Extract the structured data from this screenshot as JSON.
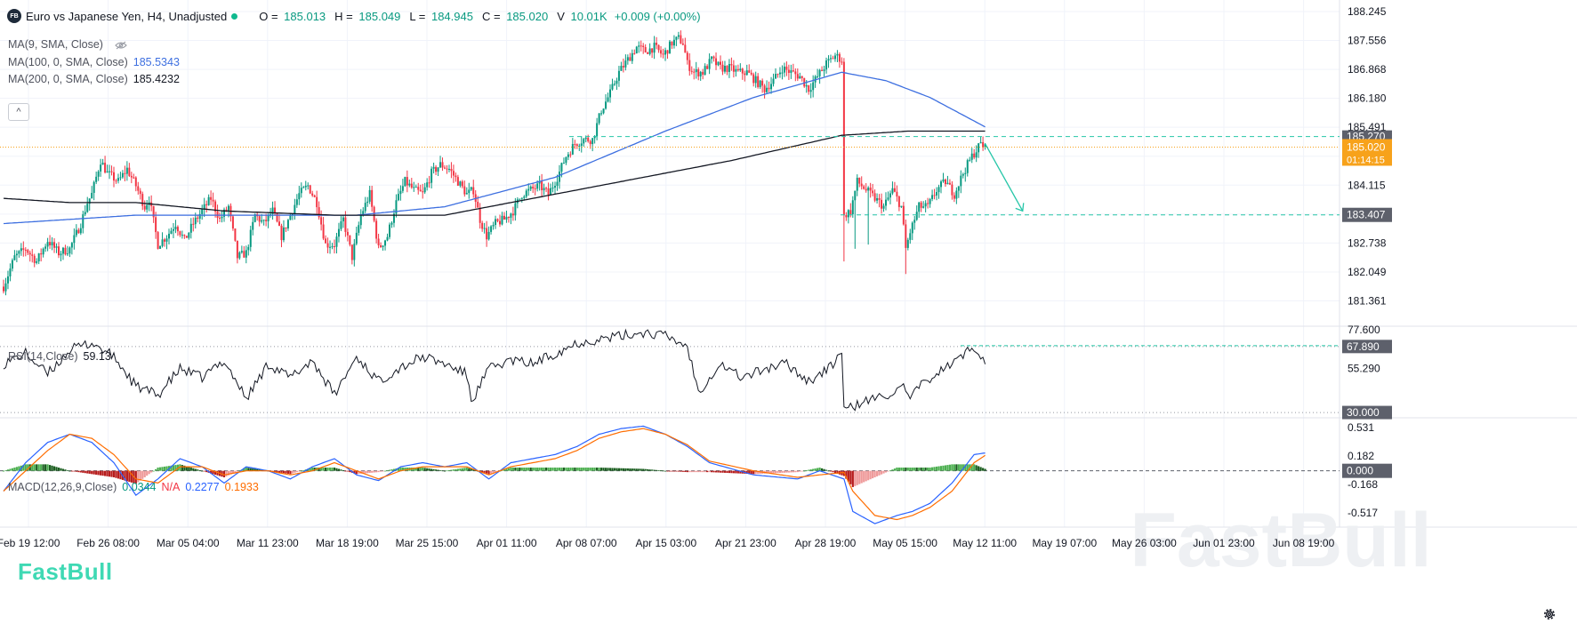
{
  "header": {
    "badge": "FB",
    "title": "Euro vs Japanese Yen, H4, Unadjusted",
    "ohlc": [
      {
        "key": "O",
        "value": "185.013"
      },
      {
        "key": "H",
        "value": "185.049"
      },
      {
        "key": "L",
        "value": "184.945"
      },
      {
        "key": "C",
        "value": "185.020"
      },
      {
        "key": "V",
        "value": "10.01K"
      }
    ],
    "change": "+0.009 (+0.00%)"
  },
  "indicators": {
    "ma9": {
      "label": "MA(9, SMA, Close)",
      "value": ""
    },
    "ma100": {
      "label": "MA(100, 0, SMA, Close)",
      "value": "185.5343",
      "color": "#3d6fe0"
    },
    "ma200": {
      "label": "MA(200, 0, SMA, Close)",
      "value": "185.4232",
      "color": "#131722"
    },
    "collapse": "^"
  },
  "rsi_legend": {
    "label": "RSI(14,Close)",
    "value": "59.13"
  },
  "macd_legend": {
    "label": "MACD(12,26,9,Close)",
    "hist": "0.0344",
    "na": "N/A",
    "macd": "0.2277",
    "signal": "0.1933"
  },
  "colors": {
    "up": "#089981",
    "down": "#f23645",
    "ma100": "#3d6fe0",
    "ma200": "#131722",
    "macd": "#2962ff",
    "signal": "#ff6d00",
    "level": "#26c6a8",
    "price_tag": "#f7a21b"
  },
  "watermark": {
    "small": "FastBull",
    "large": "FastBull"
  },
  "chart_data": [
    {
      "type": "candlestick",
      "title": "Euro vs Japanese Yen, H4, Unadjusted",
      "x_tick_labels": [
        "Feb 19 12:00",
        "Feb 26 08:00",
        "Mar 05 04:00",
        "Mar 11 23:00",
        "Mar 18 19:00",
        "Mar 25 15:00",
        "Apr 01 11:00",
        "Apr 08 07:00",
        "Apr 15 03:00",
        "Apr 21 23:00",
        "Apr 28 19:00",
        "May 05 15:00",
        "May 12 11:00",
        "May 19 07:00",
        "May 26 03:00",
        "Jun 01 23:00",
        "Jun 08 19:00"
      ],
      "y_tick_labels": [
        "188.245",
        "187.556",
        "186.868",
        "186.180",
        "185.491",
        "184.803",
        "184.115",
        "183.426",
        "182.738",
        "182.049",
        "181.361"
      ],
      "ylim": [
        180.8,
        188.35
      ],
      "anchors": [
        [
          0,
          181.7
        ],
        [
          5,
          182.4
        ],
        [
          10,
          182.6
        ],
        [
          15,
          182.3
        ],
        [
          20,
          182.8
        ],
        [
          25,
          182.5
        ],
        [
          30,
          182.6
        ],
        [
          35,
          183.2
        ],
        [
          38,
          183.7
        ],
        [
          40,
          183.9
        ],
        [
          44,
          184.7
        ],
        [
          47,
          184.4
        ],
        [
          52,
          184.2
        ],
        [
          56,
          184.5
        ],
        [
          60,
          184.1
        ],
        [
          64,
          183.6
        ],
        [
          66,
          183.8
        ],
        [
          70,
          182.7
        ],
        [
          74,
          182.9
        ],
        [
          78,
          183.2
        ],
        [
          82,
          182.8
        ],
        [
          86,
          183.2
        ],
        [
          90,
          183.5
        ],
        [
          94,
          183.8
        ],
        [
          98,
          183.3
        ],
        [
          102,
          183.6
        ],
        [
          106,
          182.4
        ],
        [
          110,
          182.5
        ],
        [
          114,
          183.4
        ],
        [
          118,
          183.2
        ],
        [
          122,
          183.5
        ],
        [
          126,
          182.9
        ],
        [
          130,
          183.4
        ],
        [
          134,
          183.9
        ],
        [
          138,
          184.1
        ],
        [
          142,
          183.7
        ],
        [
          146,
          182.7
        ],
        [
          150,
          182.7
        ],
        [
          154,
          183.3
        ],
        [
          158,
          182.4
        ],
        [
          162,
          183.4
        ],
        [
          166,
          183.9
        ],
        [
          170,
          182.6
        ],
        [
          174,
          182.9
        ],
        [
          178,
          183.7
        ],
        [
          182,
          184.2
        ],
        [
          186,
          184.0
        ],
        [
          190,
          183.9
        ],
        [
          194,
          184.4
        ],
        [
          198,
          184.6
        ],
        [
          202,
          184.5
        ],
        [
          206,
          184.2
        ],
        [
          210,
          183.9
        ],
        [
          213,
          184.0
        ],
        [
          216,
          183.3
        ],
        [
          219,
          182.9
        ],
        [
          223,
          183.2
        ],
        [
          227,
          183.3
        ],
        [
          231,
          183.5
        ],
        [
          235,
          183.9
        ],
        [
          239,
          184.0
        ],
        [
          243,
          184.1
        ],
        [
          247,
          183.9
        ],
        [
          251,
          184.3
        ],
        [
          255,
          184.8
        ],
        [
          259,
          185.1
        ],
        [
          263,
          185.2
        ],
        [
          267,
          185.2
        ],
        [
          271,
          185.9
        ],
        [
          275,
          186.3
        ],
        [
          279,
          186.8
        ],
        [
          283,
          187.1
        ],
        [
          287,
          187.4
        ],
        [
          291,
          187.3
        ],
        [
          295,
          187.4
        ],
        [
          299,
          187.2
        ],
        [
          303,
          187.5
        ],
        [
          306,
          187.6
        ],
        [
          308,
          187.5
        ],
        [
          310,
          187.0
        ],
        [
          313,
          186.8
        ],
        [
          317,
          186.8
        ],
        [
          321,
          187.1
        ],
        [
          325,
          186.9
        ],
        [
          329,
          186.9
        ],
        [
          333,
          186.8
        ],
        [
          337,
          186.8
        ],
        [
          341,
          186.6
        ],
        [
          345,
          186.4
        ],
        [
          349,
          186.6
        ],
        [
          353,
          186.9
        ],
        [
          357,
          186.8
        ],
        [
          361,
          186.7
        ],
        [
          365,
          186.4
        ],
        [
          369,
          186.7
        ],
        [
          373,
          187.0
        ],
        [
          377,
          187.2
        ],
        [
          380,
          187.1
        ],
        [
          381,
          183.4
        ],
        [
          384,
          183.5
        ],
        [
          387,
          184.2
        ],
        [
          391,
          184.0
        ],
        [
          395,
          183.8
        ],
        [
          399,
          183.6
        ],
        [
          403,
          184.0
        ],
        [
          407,
          183.6
        ],
        [
          409,
          182.6
        ],
        [
          411,
          183.0
        ],
        [
          415,
          183.6
        ],
        [
          419,
          183.6
        ],
        [
          423,
          184.0
        ],
        [
          427,
          184.2
        ],
        [
          431,
          183.9
        ],
        [
          435,
          184.4
        ],
        [
          439,
          184.8
        ],
        [
          443,
          185.1
        ],
        [
          445,
          185.0
        ]
      ],
      "ma100_anchors": [
        [
          0,
          183.2
        ],
        [
          60,
          183.4
        ],
        [
          120,
          183.4
        ],
        [
          160,
          183.4
        ],
        [
          200,
          183.6
        ],
        [
          250,
          184.3
        ],
        [
          300,
          185.4
        ],
        [
          340,
          186.2
        ],
        [
          380,
          186.8
        ],
        [
          400,
          186.6
        ],
        [
          420,
          186.2
        ],
        [
          445,
          185.5
        ]
      ],
      "ma200_anchors": [
        [
          0,
          183.8
        ],
        [
          30,
          183.7
        ],
        [
          60,
          183.7
        ],
        [
          100,
          183.5
        ],
        [
          150,
          183.4
        ],
        [
          200,
          183.4
        ],
        [
          240,
          183.8
        ],
        [
          280,
          184.2
        ],
        [
          330,
          184.7
        ],
        [
          380,
          185.3
        ],
        [
          410,
          185.4
        ],
        [
          445,
          185.4
        ]
      ],
      "last_price": "185.020",
      "last_price_countdown": "01:14:15",
      "level_upper": "185.270",
      "level_lower": "183.407",
      "forecast_arrow": {
        "from": [
          445,
          185.1
        ],
        "to": [
          462,
          183.5
        ]
      }
    },
    {
      "type": "line",
      "name": "RSI(14,Close)",
      "ylim": [
        28,
        78
      ],
      "y_tick_labels": [
        "77.600",
        "55.290"
      ],
      "reference_lines": [
        "30.000",
        "67.890"
      ],
      "current": "59.13",
      "anchors": [
        [
          0,
          58
        ],
        [
          10,
          64
        ],
        [
          20,
          52
        ],
        [
          30,
          66
        ],
        [
          40,
          70
        ],
        [
          50,
          62
        ],
        [
          60,
          45
        ],
        [
          70,
          40
        ],
        [
          80,
          55
        ],
        [
          90,
          50
        ],
        [
          100,
          60
        ],
        [
          110,
          38
        ],
        [
          120,
          58
        ],
        [
          130,
          50
        ],
        [
          140,
          60
        ],
        [
          150,
          40
        ],
        [
          160,
          62
        ],
        [
          170,
          48
        ],
        [
          180,
          56
        ],
        [
          190,
          62
        ],
        [
          200,
          58
        ],
        [
          210,
          52
        ],
        [
          212,
          36
        ],
        [
          220,
          55
        ],
        [
          230,
          60
        ],
        [
          240,
          58
        ],
        [
          250,
          64
        ],
        [
          260,
          70
        ],
        [
          270,
          72
        ],
        [
          280,
          74
        ],
        [
          290,
          76
        ],
        [
          300,
          74
        ],
        [
          310,
          68
        ],
        [
          315,
          42
        ],
        [
          325,
          58
        ],
        [
          335,
          50
        ],
        [
          345,
          55
        ],
        [
          355,
          58
        ],
        [
          365,
          48
        ],
        [
          375,
          56
        ],
        [
          380,
          66
        ],
        [
          381,
          31
        ],
        [
          390,
          36
        ],
        [
          400,
          40
        ],
        [
          408,
          44
        ],
        [
          410,
          38
        ],
        [
          420,
          50
        ],
        [
          430,
          58
        ],
        [
          440,
          68
        ],
        [
          445,
          60
        ]
      ]
    },
    {
      "type": "bar",
      "name": "MACD(12,26,9,Close)",
      "ylim": [
        -0.66,
        0.62
      ],
      "y_tick_labels": [
        "0.531",
        "0.182",
        "-0.168",
        "-0.517"
      ],
      "current": "0.000",
      "macd_anchors": [
        [
          0,
          -0.25
        ],
        [
          10,
          0.1
        ],
        [
          20,
          0.35
        ],
        [
          30,
          0.45
        ],
        [
          40,
          0.35
        ],
        [
          50,
          0.1
        ],
        [
          60,
          -0.3
        ],
        [
          70,
          -0.1
        ],
        [
          80,
          0.15
        ],
        [
          90,
          0.05
        ],
        [
          100,
          -0.15
        ],
        [
          110,
          0.05
        ],
        [
          120,
          0.0
        ],
        [
          130,
          -0.1
        ],
        [
          140,
          0.05
        ],
        [
          150,
          0.15
        ],
        [
          160,
          -0.05
        ],
        [
          170,
          -0.12
        ],
        [
          180,
          0.05
        ],
        [
          190,
          0.1
        ],
        [
          200,
          0.05
        ],
        [
          210,
          0.1
        ],
        [
          220,
          -0.1
        ],
        [
          230,
          0.1
        ],
        [
          240,
          0.15
        ],
        [
          250,
          0.2
        ],
        [
          260,
          0.3
        ],
        [
          270,
          0.45
        ],
        [
          280,
          0.52
        ],
        [
          290,
          0.55
        ],
        [
          300,
          0.45
        ],
        [
          310,
          0.3
        ],
        [
          320,
          0.1
        ],
        [
          340,
          -0.05
        ],
        [
          360,
          -0.1
        ],
        [
          370,
          0.0
        ],
        [
          381,
          -0.1
        ],
        [
          385,
          -0.5
        ],
        [
          395,
          -0.65
        ],
        [
          405,
          -0.55
        ],
        [
          412,
          -0.5
        ],
        [
          420,
          -0.4
        ],
        [
          430,
          -0.15
        ],
        [
          440,
          0.2
        ],
        [
          445,
          0.22
        ]
      ],
      "signal_anchors": [
        [
          0,
          -0.25
        ],
        [
          10,
          0.0
        ],
        [
          20,
          0.25
        ],
        [
          30,
          0.45
        ],
        [
          40,
          0.4
        ],
        [
          50,
          0.2
        ],
        [
          60,
          -0.1
        ],
        [
          70,
          -0.15
        ],
        [
          80,
          0.05
        ],
        [
          90,
          0.05
        ],
        [
          100,
          -0.05
        ],
        [
          110,
          0.0
        ],
        [
          120,
          0.0
        ],
        [
          130,
          -0.05
        ],
        [
          140,
          0.0
        ],
        [
          150,
          0.1
        ],
        [
          160,
          0.0
        ],
        [
          170,
          -0.1
        ],
        [
          180,
          0.0
        ],
        [
          190,
          0.05
        ],
        [
          200,
          0.05
        ],
        [
          210,
          0.05
        ],
        [
          220,
          -0.05
        ],
        [
          230,
          0.05
        ],
        [
          240,
          0.1
        ],
        [
          250,
          0.15
        ],
        [
          260,
          0.25
        ],
        [
          270,
          0.4
        ],
        [
          280,
          0.48
        ],
        [
          290,
          0.52
        ],
        [
          300,
          0.45
        ],
        [
          310,
          0.32
        ],
        [
          320,
          0.12
        ],
        [
          340,
          0.0
        ],
        [
          360,
          -0.08
        ],
        [
          370,
          -0.05
        ],
        [
          381,
          -0.02
        ],
        [
          385,
          -0.25
        ],
        [
          395,
          -0.55
        ],
        [
          405,
          -0.6
        ],
        [
          412,
          -0.55
        ],
        [
          420,
          -0.45
        ],
        [
          430,
          -0.25
        ],
        [
          440,
          0.1
        ],
        [
          445,
          0.19
        ]
      ]
    }
  ]
}
